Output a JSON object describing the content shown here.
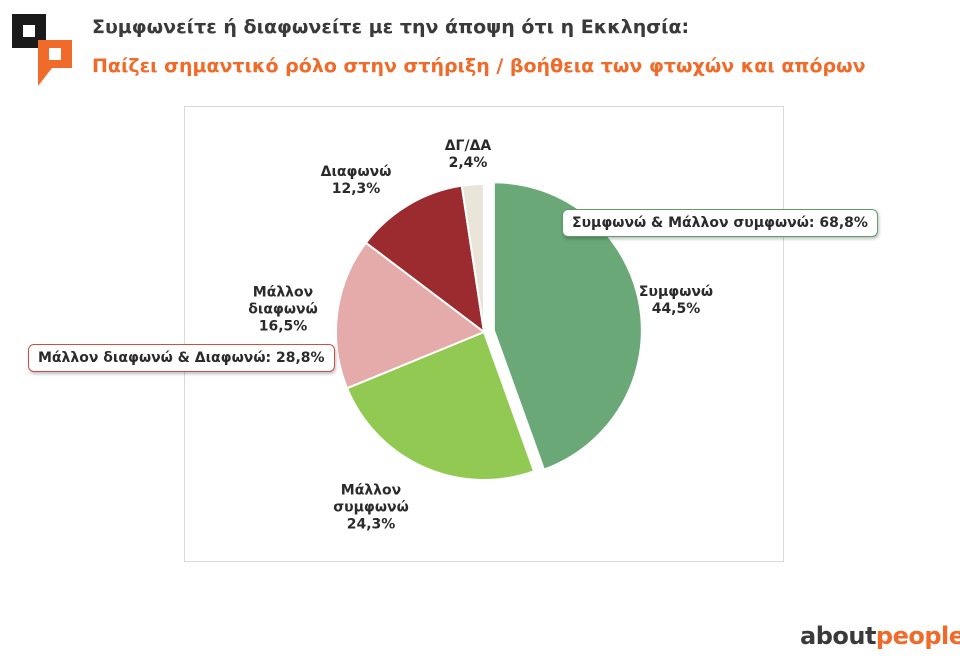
{
  "header": {
    "title": "Συμφωνείτε ή διαφωνείτε με την άποψη ότι η Εκκλησία:",
    "subtitle": "Παίζει σημαντικό ρόλο στην στήριξη / βοήθεια των φτωχών και απόρων"
  },
  "colors": {
    "title": "#3a3a3a",
    "accent": "#f06a2a"
  },
  "chart_data": {
    "type": "pie",
    "start_angle_deg": 0,
    "direction": "clockwise",
    "slices": [
      {
        "label": "Συμφωνώ",
        "value": 44.5,
        "display": "44,5%",
        "color": "#6aa878",
        "color_dark": "#5c9a6a",
        "exploded": true
      },
      {
        "label": "Μάλλον συμφωνώ",
        "label_lines": [
          "Μάλλον",
          "συμφωνώ"
        ],
        "value": 24.3,
        "display": "24,3%",
        "color": "#92c952",
        "color_dark": "#86bf47",
        "exploded": false
      },
      {
        "label": "Μάλλον διαφωνώ",
        "label_lines": [
          "Μάλλον",
          "διαφωνώ"
        ],
        "value": 16.5,
        "display": "16,5%",
        "color": "#e5aaaa",
        "color_dark": "#d48f91",
        "exploded": false
      },
      {
        "label": "Διαφωνώ",
        "value": 12.3,
        "display": "12,3%",
        "color": "#9b2b2e",
        "color_dark": "#8d2629",
        "exploded": false
      },
      {
        "label": "ΔΓ/ΔΑ",
        "value": 2.4,
        "display": "2,4%",
        "color": "#e9e5d9",
        "color_dark": "#dcd7c8",
        "exploded": false
      }
    ],
    "callouts": {
      "agree": "Συμφωνώ & Μάλλον συμφωνώ: 68,8%",
      "disagree": "Μάλλον διαφωνώ & Διαφωνώ: 28,8%"
    }
  },
  "brand": {
    "part1": "about",
    "part2": "people"
  }
}
